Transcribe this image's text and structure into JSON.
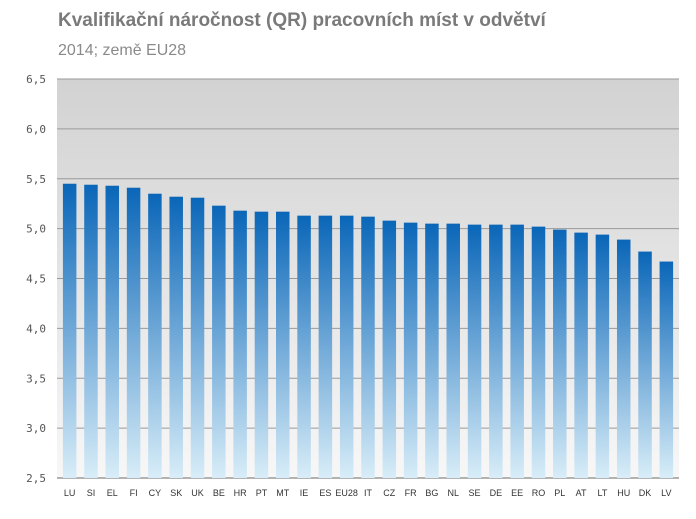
{
  "title": "Kvalifikační náročnost (QR)  pracovních míst v odvětví",
  "subtitle": "2014; země EU28",
  "chart_data": {
    "type": "bar",
    "title": "Kvalifikační náročnost (QR)  pracovních míst v odvětví",
    "subtitle": "2014; země EU28",
    "xlabel": "",
    "ylabel": "",
    "ylim": [
      2.5,
      6.5
    ],
    "yticks": [
      "2,5",
      "3,0",
      "3,5",
      "4,0",
      "4,5",
      "5,0",
      "5,5",
      "6,0",
      "6,5"
    ],
    "grid": true,
    "legend": "none",
    "categories": [
      "LU",
      "SI",
      "EL",
      "FI",
      "CY",
      "SK",
      "UK",
      "BE",
      "HR",
      "PT",
      "MT",
      "IE",
      "ES",
      "EU28",
      "IT",
      "CZ",
      "FR",
      "BG",
      "NL",
      "SE",
      "DE",
      "EE",
      "RO",
      "PL",
      "AT",
      "LT",
      "HU",
      "DK",
      "LV"
    ],
    "values": [
      5.45,
      5.44,
      5.43,
      5.41,
      5.35,
      5.32,
      5.31,
      5.23,
      5.18,
      5.17,
      5.17,
      5.13,
      5.13,
      5.13,
      5.12,
      5.08,
      5.06,
      5.05,
      5.05,
      5.04,
      5.04,
      5.04,
      5.02,
      4.99,
      4.96,
      4.94,
      4.89,
      4.77,
      4.67
    ],
    "colors": {
      "bar_top": "#0a66b8",
      "bar_bottom": "#d8edf8",
      "plot_top": "#d2d2d2",
      "plot_bottom": "#f7f7f7",
      "grid": "#9a9a9a"
    }
  }
}
